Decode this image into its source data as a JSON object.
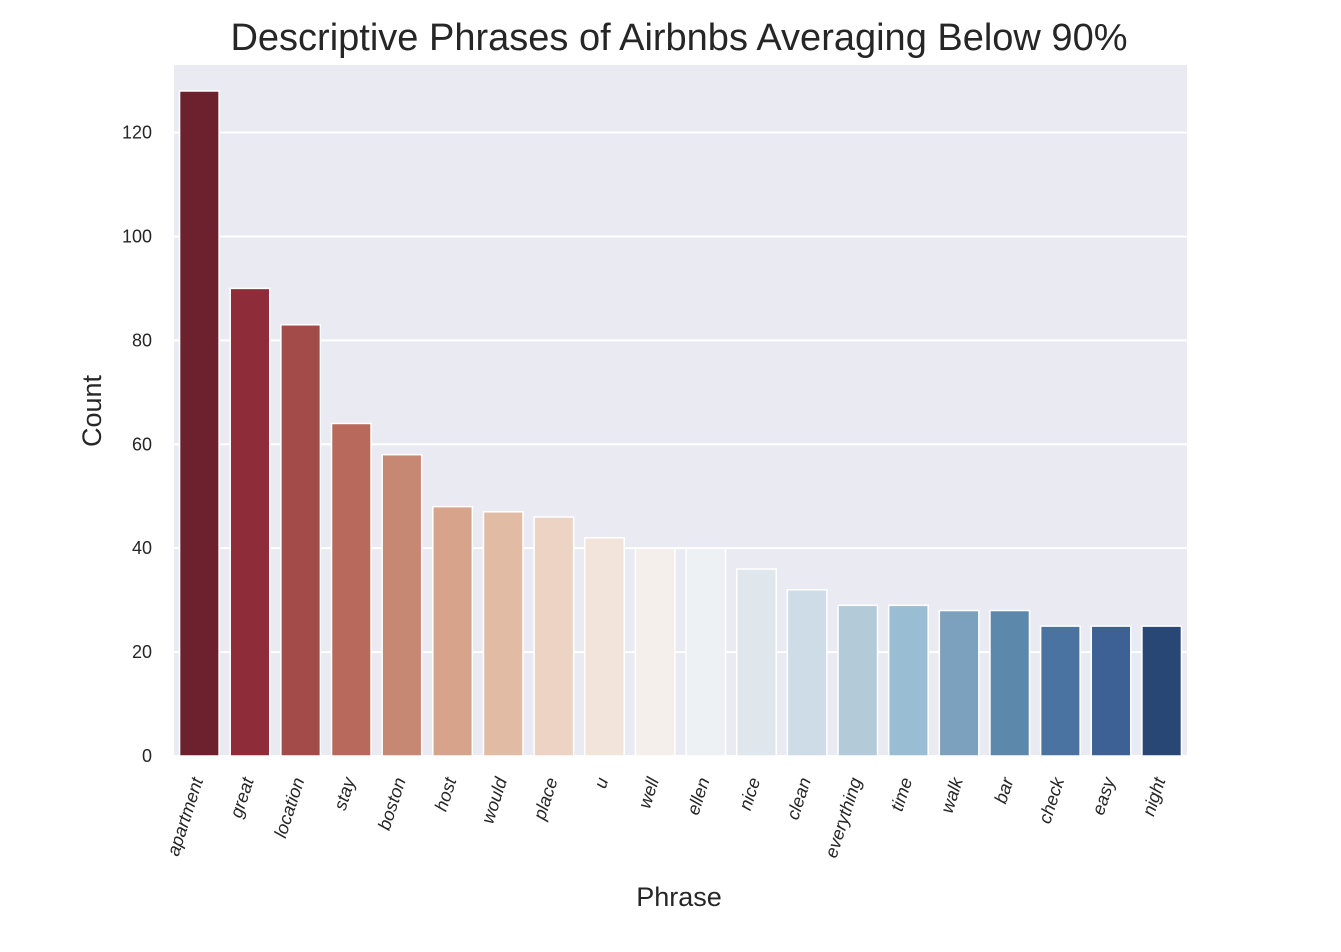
{
  "chart_data": {
    "type": "bar",
    "title": "Descriptive Phrases of  Airbnbs Averaging Below 90%",
    "xlabel": "Phrase",
    "ylabel": "Count",
    "ylim": [
      0,
      133
    ],
    "yticks": [
      0,
      20,
      40,
      60,
      80,
      100,
      120
    ],
    "grid": true,
    "categories": [
      "apartment",
      "great",
      "location",
      "stay",
      "boston",
      "host",
      "would",
      "place",
      "u",
      "well",
      "ellen",
      "nice",
      "clean",
      "everything",
      "time",
      "walk",
      "bar",
      "check",
      "easy",
      "night"
    ],
    "values": [
      128,
      90,
      83,
      64,
      58,
      48,
      47,
      46,
      42,
      40,
      40,
      36,
      32,
      29,
      29,
      28,
      28,
      25,
      25,
      25
    ],
    "colors": [
      "#6d202d",
      "#8e2c39",
      "#a24b48",
      "#b8695c",
      "#c68873",
      "#d7a48b",
      "#e2bba4",
      "#ecd3c3",
      "#f2e4da",
      "#f4efea",
      "#eef1f4",
      "#dfe6ec",
      "#cddce6",
      "#b3cad9",
      "#99bed3",
      "#7ba1be",
      "#5b88ab",
      "#4a73a2",
      "#3d6195",
      "#284775"
    ],
    "plot_background": "#eaeaf2"
  }
}
